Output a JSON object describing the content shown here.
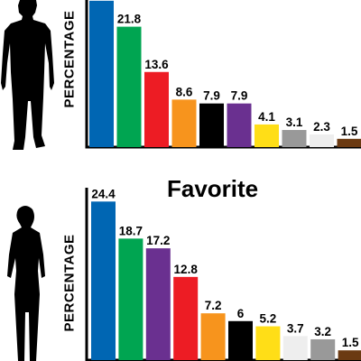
{
  "chart_data": [
    {
      "type": "bar",
      "title": "",
      "ylabel": "PERCENTAGE",
      "categories": [
        "blue",
        "green",
        "red",
        "orange",
        "black",
        "purple",
        "yellow",
        "gray",
        "white",
        "brown"
      ],
      "values": [
        26.5,
        21.8,
        13.6,
        8.6,
        7.9,
        7.9,
        4.1,
        3.1,
        2.3,
        1.5
      ],
      "labels": [
        "",
        "21.8",
        "13.6",
        "8.6",
        "7.9",
        "7.9",
        "4.1",
        "3.1",
        "2.3",
        "1.5"
      ],
      "colors": [
        "#0066b3",
        "#00a551",
        "#ed1c24",
        "#f7941d",
        "#000000",
        "#6a3090",
        "#ffde17",
        "#999999",
        "#eeeeee",
        "#6b3a12"
      ],
      "silhouette": "man-silhouette"
    },
    {
      "type": "bar",
      "title": "Favorite",
      "ylabel": "PERCENTAGE",
      "categories": [
        "blue",
        "green",
        "purple",
        "red",
        "orange",
        "black",
        "yellow",
        "white",
        "gray",
        "brown"
      ],
      "values": [
        24.4,
        18.7,
        17.2,
        12.8,
        7.2,
        6,
        5.2,
        3.7,
        3.2,
        1.5
      ],
      "labels": [
        "24.4",
        "18.7",
        "17.2",
        "12.8",
        "7.2",
        "6",
        "5.2",
        "3.7",
        "3.2",
        "1.5"
      ],
      "colors": [
        "#0066b3",
        "#00a551",
        "#6a3090",
        "#ed1c24",
        "#f7941d",
        "#000000",
        "#ffde17",
        "#eeeeee",
        "#999999",
        "#6b3a12"
      ],
      "silhouette": "woman-silhouette"
    }
  ]
}
